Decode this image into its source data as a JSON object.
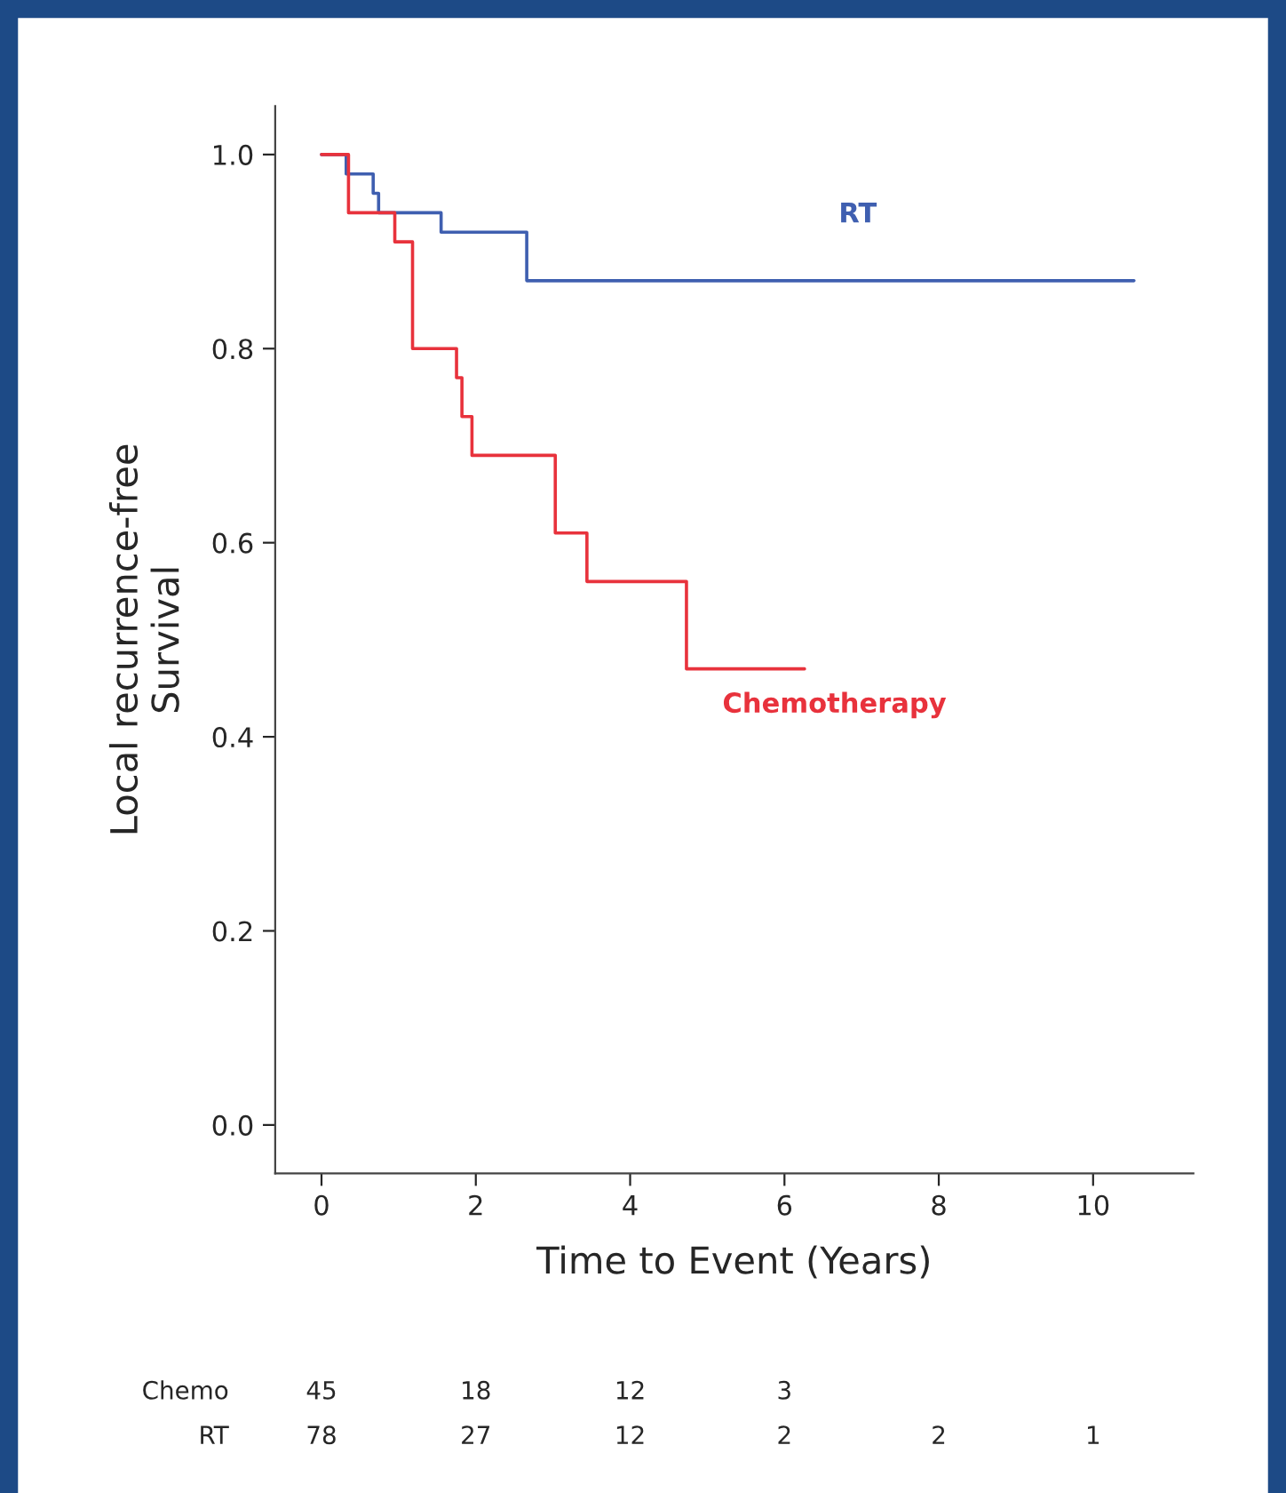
{
  "chart_data": {
    "type": "step",
    "xlabel": "Time to Event (Years)",
    "ylabel": "Local recurrence-free\nSurvival",
    "series": [
      {
        "name": "RT",
        "color": "#3f5fb0",
        "x": [
          0,
          0.32,
          0.67,
          0.74,
          1.55,
          2.66,
          10.53
        ],
        "values": [
          1.0,
          0.98,
          0.96,
          0.94,
          0.92,
          0.87,
          0.87
        ]
      },
      {
        "name": "Chemotherapy",
        "color": "#e8323c",
        "x": [
          0,
          0.35,
          0.95,
          1.18,
          1.75,
          1.82,
          1.95,
          3.03,
          3.44,
          4.73,
          6.26
        ],
        "values": [
          1.0,
          0.94,
          0.91,
          0.8,
          0.77,
          0.73,
          0.69,
          0.61,
          0.56,
          0.47,
          0.47
        ]
      }
    ],
    "xlim": [
      -0.6,
      11.3
    ],
    "xticks": [
      0,
      2,
      4,
      6,
      8,
      10
    ],
    "ylim": [
      -0.05,
      1.05
    ],
    "yticks": [
      {
        "value": 0,
        "label": "0.0"
      },
      {
        "value": 0.2,
        "label": "0.2"
      },
      {
        "value": 0.4,
        "label": "0.4"
      },
      {
        "value": 0.6,
        "label": "0.6"
      },
      {
        "value": 0.8,
        "label": "0.8"
      },
      {
        "value": 1,
        "label": "1.0"
      }
    ],
    "grid": false,
    "legend": false,
    "line_style": "solid",
    "marker": "none",
    "annotations": [
      "Chemo 45 18 12 3",
      "RT 78 27 12 2 2 1"
    ]
  }
}
